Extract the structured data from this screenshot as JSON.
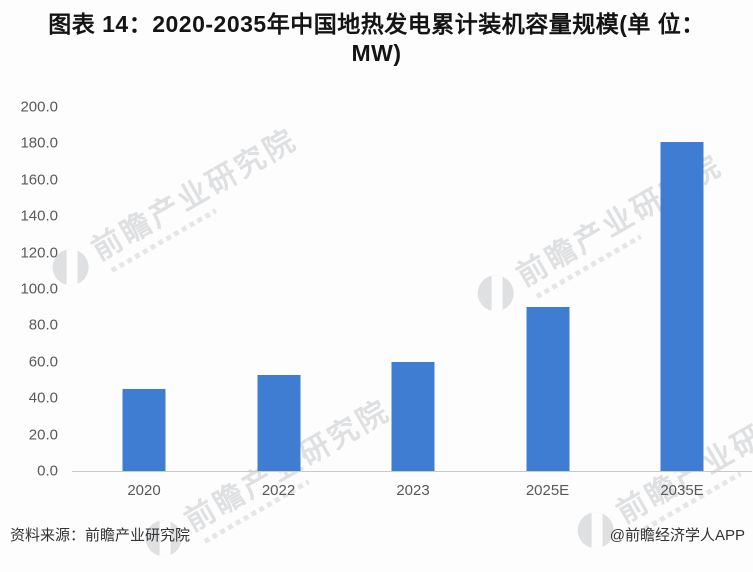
{
  "title": {
    "line1": "图表 14：2020-2035年中国地热发电累计装机容量规模(单 位：",
    "line2": "MW)"
  },
  "footer": {
    "source": "资料来源：前瞻产业研究院",
    "attribution": "@前瞻经济学人APP"
  },
  "watermark": {
    "text": "前瞻产业研究院"
  },
  "colors": {
    "bar": "#3e7dd2",
    "axis_line": "#c9c9c9",
    "tick_label": "#595959",
    "title_text": "#141414",
    "footer_text": "#333333",
    "watermark": "#c3c5c9"
  },
  "chart_data": {
    "type": "bar",
    "title": "图表 14：2020-2035年中国地热发电累计装机容量规模(单 位：MW)",
    "unit": "MW",
    "categories": [
      "2020",
      "2022",
      "2023",
      "2025E",
      "2035E"
    ],
    "values": [
      45.0,
      53.0,
      60.0,
      90.0,
      181.0
    ],
    "xlabel": "",
    "ylabel": "",
    "ylim": [
      0,
      200
    ],
    "ytick_step": 20,
    "ytick_labels": [
      "0.0",
      "20.0",
      "40.0",
      "60.0",
      "80.0",
      "100.0",
      "120.0",
      "140.0",
      "160.0",
      "180.0",
      "200.0"
    ],
    "grid": false,
    "legend": false,
    "bar_color": "#3e7dd2"
  }
}
